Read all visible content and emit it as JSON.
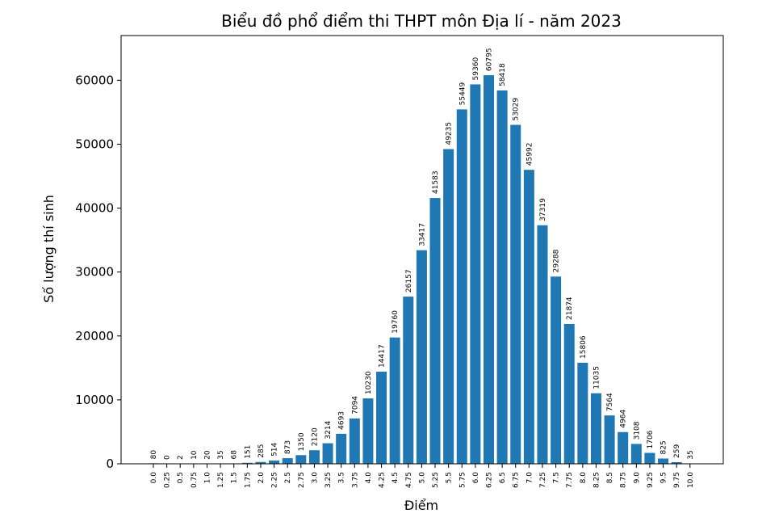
{
  "chart_data": {
    "type": "bar",
    "title": "Biểu đồ phổ điểm thi THPT môn Địa lí - năm 2023",
    "xlabel": "Điểm",
    "ylabel": "Số lượng thí sinh",
    "categories": [
      "0.0",
      "0.25",
      "0.5",
      "0.75",
      "1.0",
      "1.25",
      "1.5",
      "1.75",
      "2.0",
      "2.25",
      "2.5",
      "2.75",
      "3.0",
      "3.25",
      "3.5",
      "3.75",
      "4.0",
      "4.25",
      "4.5",
      "4.75",
      "5.0",
      "5.25",
      "5.5",
      "5.75",
      "6.0",
      "6.25",
      "6.5",
      "6.75",
      "7.0",
      "7.25",
      "7.5",
      "7.75",
      "8.0",
      "8.25",
      "8.5",
      "8.75",
      "9.0",
      "9.25",
      "9.5",
      "9.75",
      "10.0"
    ],
    "values": [
      80,
      0,
      2,
      10,
      20,
      35,
      68,
      151,
      285,
      514,
      873,
      1350,
      2120,
      3214,
      4693,
      7094,
      10230,
      14417,
      19760,
      26157,
      33417,
      41583,
      49235,
      55449,
      59360,
      60795,
      58418,
      53029,
      45992,
      37319,
      29288,
      21874,
      15806,
      11035,
      7564,
      4964,
      3108,
      1706,
      825,
      259,
      35
    ],
    "ylim": [
      0,
      67000
    ],
    "yticks": [
      0,
      10000,
      20000,
      30000,
      40000,
      50000,
      60000
    ],
    "bar_color": "#1f77b4",
    "grid": false,
    "legend": "none"
  }
}
